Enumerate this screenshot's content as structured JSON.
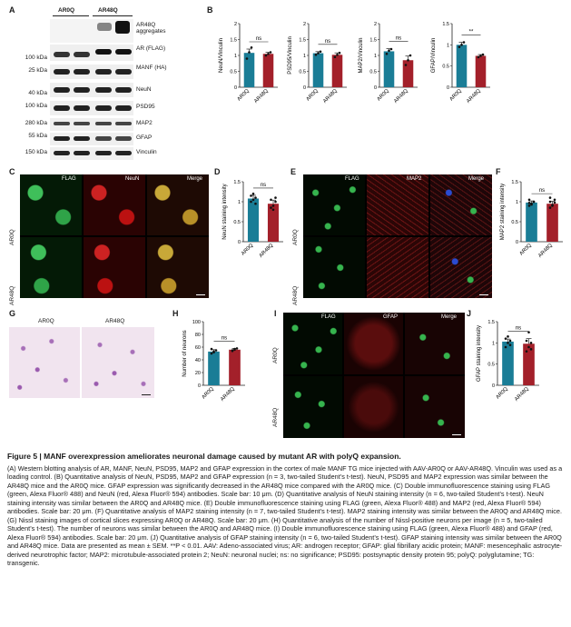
{
  "panel_letters": {
    "A": "A",
    "B": "B",
    "C": "C",
    "D": "D",
    "E": "E",
    "F": "F",
    "G": "G",
    "H": "H",
    "I": "I",
    "J": "J"
  },
  "blot": {
    "groups": [
      "AR0Q",
      "AR48Q"
    ],
    "rows": [
      {
        "mw": "",
        "target": "AR48Q aggregates"
      },
      {
        "mw": "100 kDa",
        "target": "AR (FLAG)"
      },
      {
        "mw": "25 kDa",
        "target": "MANF (HA)"
      },
      {
        "mw": "40 kDa",
        "target": "NeuN"
      },
      {
        "mw": "100 kDa",
        "target": "PSD95"
      },
      {
        "mw": "280 kDa",
        "target": "MAP2"
      },
      {
        "mw": "55 kDa",
        "target": "GFAP"
      },
      {
        "mw": "150 kDa",
        "target": "Vinculin"
      }
    ]
  },
  "micro_c": {
    "cols": [
      "FLAG",
      "NeuN",
      "Merge"
    ],
    "rows": [
      "AR0Q",
      "AR48Q"
    ]
  },
  "micro_e": {
    "cols": [
      "FLAG",
      "MAP2",
      "Merge"
    ],
    "rows": [
      "AR0Q",
      "AR48Q"
    ]
  },
  "micro_g": {
    "cols": [
      "AR0Q",
      "AR48Q"
    ]
  },
  "micro_i": {
    "cols": [
      "FLAG",
      "GFAP",
      "Merge"
    ],
    "rows": [
      "AR0Q",
      "AR48Q"
    ]
  },
  "colors": {
    "ar0q": "#1a7d96",
    "ar48q": "#a3202a"
  },
  "chart_data": [
    {
      "id": "B1",
      "type": "bar",
      "categories": [
        "AR0Q",
        "AR48Q"
      ],
      "values": [
        1.08,
        1.05
      ],
      "errors": [
        0.12,
        0.05
      ],
      "ylabel": "NeuN/Vinculin",
      "ylim": [
        0,
        2.0
      ],
      "yticks": [
        0,
        0.5,
        1.0,
        1.5,
        2.0
      ],
      "sig": "ns",
      "points": [
        [
          0.9,
          1.1,
          1.25
        ],
        [
          1.0,
          1.05,
          1.1
        ]
      ]
    },
    {
      "id": "B2",
      "type": "bar",
      "categories": [
        "AR0Q",
        "AR48Q"
      ],
      "values": [
        1.07,
        1.02
      ],
      "errors": [
        0.05,
        0.06
      ],
      "ylabel": "PSD95/Vinculin",
      "ylim": [
        0,
        2.0
      ],
      "yticks": [
        0,
        0.5,
        1.0,
        1.5,
        2.0
      ],
      "sig": "ns",
      "points": [
        [
          1.02,
          1.07,
          1.12
        ],
        [
          0.95,
          1.02,
          1.08
        ]
      ]
    },
    {
      "id": "B3",
      "type": "bar",
      "categories": [
        "AR0Q",
        "AR48Q"
      ],
      "values": [
        1.13,
        0.85
      ],
      "errors": [
        0.08,
        0.13
      ],
      "ylabel": "MAP2/Vinculin",
      "ylim": [
        0,
        2.0
      ],
      "yticks": [
        0,
        0.5,
        1.0,
        1.5,
        2.0
      ],
      "sig": "ns",
      "points": [
        [
          1.05,
          1.15,
          1.2
        ],
        [
          0.7,
          0.85,
          1.0
        ]
      ]
    },
    {
      "id": "B4",
      "type": "bar",
      "categories": [
        "AR0Q",
        "AR48Q"
      ],
      "values": [
        1.0,
        0.74
      ],
      "errors": [
        0.06,
        0.03
      ],
      "ylabel": "GFAP/Vinculin",
      "ylim": [
        0,
        1.5
      ],
      "yticks": [
        0,
        0.5,
        1.0,
        1.5
      ],
      "sig": "**",
      "points": [
        [
          0.95,
          1.0,
          1.06
        ],
        [
          0.71,
          0.74,
          0.77
        ]
      ]
    },
    {
      "id": "D",
      "type": "bar",
      "categories": [
        "AR0Q",
        "AR48Q"
      ],
      "values": [
        1.08,
        0.95
      ],
      "errors": [
        0.08,
        0.09
      ],
      "ylabel": "NeuN staining intensity",
      "ylim": [
        0,
        1.5
      ],
      "yticks": [
        0,
        0.5,
        1.0,
        1.5
      ],
      "sig": "ns",
      "points": [
        [
          1.0,
          1.05,
          1.1,
          1.15,
          1.2,
          0.95
        ],
        [
          0.85,
          0.9,
          1.0,
          1.05,
          0.8,
          1.1
        ]
      ]
    },
    {
      "id": "F",
      "type": "bar",
      "categories": [
        "AR0Q",
        "AR48Q"
      ],
      "values": [
        0.98,
        0.95
      ],
      "errors": [
        0.04,
        0.06
      ],
      "ylabel": "MAP2 staining intensity",
      "ylim": [
        0,
        1.5
      ],
      "yticks": [
        0,
        0.5,
        1.0,
        1.5
      ],
      "sig": "ns",
      "points": [
        [
          0.9,
          0.95,
          1.0,
          1.05,
          0.93,
          1.0,
          0.97
        ],
        [
          0.85,
          0.9,
          1.05,
          1.0,
          0.92,
          0.98,
          1.1
        ]
      ]
    },
    {
      "id": "H",
      "type": "bar",
      "categories": [
        "AR0Q",
        "AR48Q"
      ],
      "values": [
        53,
        56
      ],
      "errors": [
        3,
        2
      ],
      "ylabel": "Number of neurons",
      "ylim": [
        0,
        100
      ],
      "yticks": [
        0,
        20,
        40,
        60,
        80,
        100
      ],
      "sig": "ns",
      "points": [
        [
          50,
          53,
          55,
          57,
          52
        ],
        [
          54,
          56,
          58,
          55,
          57
        ]
      ]
    },
    {
      "id": "J",
      "type": "bar",
      "categories": [
        "AR0Q",
        "AR48Q"
      ],
      "values": [
        1.03,
        0.98
      ],
      "errors": [
        0.06,
        0.12
      ],
      "ylabel": "GFAP staining intensity",
      "ylim": [
        0,
        1.5
      ],
      "yticks": [
        0,
        0.5,
        1.0,
        1.5
      ],
      "sig": "ns",
      "points": [
        [
          0.9,
          1.0,
          1.05,
          1.1,
          1.15,
          0.95
        ],
        [
          0.8,
          0.9,
          1.0,
          1.05,
          1.25,
          0.85
        ]
      ]
    }
  ],
  "caption": {
    "title": "Figure 5 | MANF overexpression ameliorates neuronal damage caused by mutant AR with polyQ expansion.",
    "body": "(A) Western blotting analysis of AR, MANF, NeuN, PSD95, MAP2 and GFAP expression in the cortex of male MANF TG mice injected with AAV-AR0Q or AAV-AR48Q. Vinculin was used as a loading control. (B) Quantitative analysis of NeuN, PSD95, MAP2 and GFAP expression (n = 3, two-tailed Student’s t-test). NeuN, PSD95 and MAP2 expression was similar between the AR48Q mice and the AR0Q mice. GFAP expression was significantly decreased in the AR48Q mice compared with the AR0Q mice. (C) Double immunofluorescence staining using FLAG (green, Alexa Fluor® 488) and NeuN (red, Alexa Fluor® 594) antibodies. Scale bar: 10 μm. (D) Quantitative analysis of NeuN staining intensity (n = 6, two-tailed Student’s t-test). NeuN staining intensity was similar between the AR0Q and AR48Q mice. (E) Double immunofluorescence staining using FLAG (green, Alexa Fluor® 488) and MAP2 (red, Alexa Fluor® 594) antibodies. Scale bar: 20 μm. (F) Quantitative analysis of MAP2 staining intensity (n = 7, two-tailed Student’s t-test). MAP2 staining intensity was similar between the AR0Q and AR48Q mice. (G) Nissl staining images of cortical slices expressing AR0Q or AR48Q. Scale bar: 20 μm. (H) Quantitative analysis of the number of Nissl-positive neurons per image (n = 5, two-tailed Student’s t-test). The number of neurons was similar between the AR0Q and AR48Q mice. (I) Double immunofluorescence staining using FLAG (green, Alexa Fluor® 488) and GFAP (red, Alexa Fluor® 594) antibodies. Scale bar: 20 μm. (J) Quantitative analysis of GFAP staining intensity (n = 6, two-tailed Student’s t-test). GFAP staining intensity was similar between the AR0Q and AR48Q mice. Data are presented as mean ± SEM. **P < 0.01. AAV: Adeno-associated virus; AR: androgen receptor; GFAP: glial fibrillary acidic protein; MANF: mesencephalic astrocyte-derived neurotrophic factor; MAP2: microtubule-associated protein 2; NeuN: neuronal nuclei; ns: no significance; PSD95: postsynaptic density protein 95; polyQ: polyglutamine; TG: transgenic."
  }
}
